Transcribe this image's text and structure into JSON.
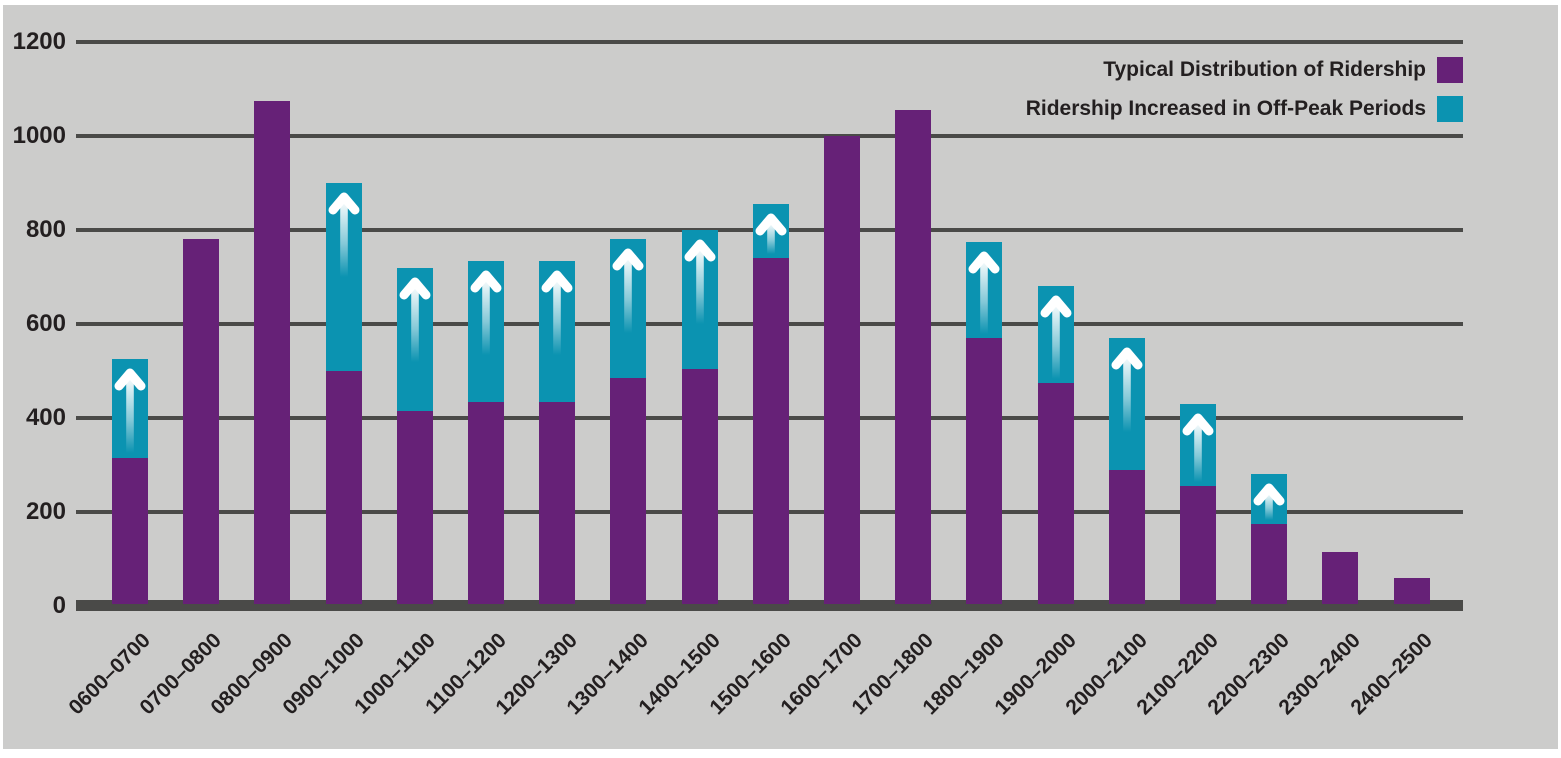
{
  "figure": {
    "background_color": "#cccccb",
    "gridline_color": "#4a4a48",
    "text_color": "#231f20"
  },
  "legend": {
    "position": "top-right",
    "items": [
      {
        "label": "Typical Distribution of Ridership",
        "color": "#662177"
      },
      {
        "label": "Ridership Increased in Off-Peak Periods",
        "color": "#0b93b1"
      }
    ]
  },
  "chart_data": {
    "type": "bar",
    "stacked": true,
    "title": "",
    "xlabel": "",
    "ylabel": "",
    "ylim": [
      0,
      1200
    ],
    "yticks": [
      0,
      200,
      400,
      600,
      800,
      1000,
      1200
    ],
    "grid": "horizontal",
    "legend_position": "top-right",
    "annotation": "white up-arrow inside each off-peak increase segment",
    "categories": [
      "0600–0700",
      "0700–0800",
      "0800–0900",
      "0900–1000",
      "1000–1100",
      "1100–1200",
      "1200–1300",
      "1300–1400",
      "1400–1500",
      "1500–1600",
      "1600–1700",
      "1700–1800",
      "1800–1900",
      "1900–2000",
      "2000–2100",
      "2100–2200",
      "2200–2300",
      "2300–2400",
      "2400–2500"
    ],
    "series": [
      {
        "name": "Typical Distribution of Ridership",
        "color": "#662177",
        "values": [
          315,
          780,
          1075,
          500,
          415,
          435,
          435,
          485,
          505,
          740,
          1000,
          1055,
          570,
          475,
          290,
          255,
          175,
          115,
          60
        ]
      },
      {
        "name": "Ridership Increased in Off-Peak Periods",
        "color": "#0b93b1",
        "values": [
          210,
          0,
          0,
          400,
          305,
          300,
          300,
          295,
          295,
          115,
          0,
          0,
          205,
          205,
          280,
          175,
          105,
          0,
          0
        ]
      }
    ],
    "stacked_totals": [
      525,
      780,
      1075,
      900,
      720,
      735,
      735,
      780,
      800,
      855,
      1000,
      1055,
      775,
      680,
      570,
      430,
      280,
      115,
      60
    ]
  }
}
